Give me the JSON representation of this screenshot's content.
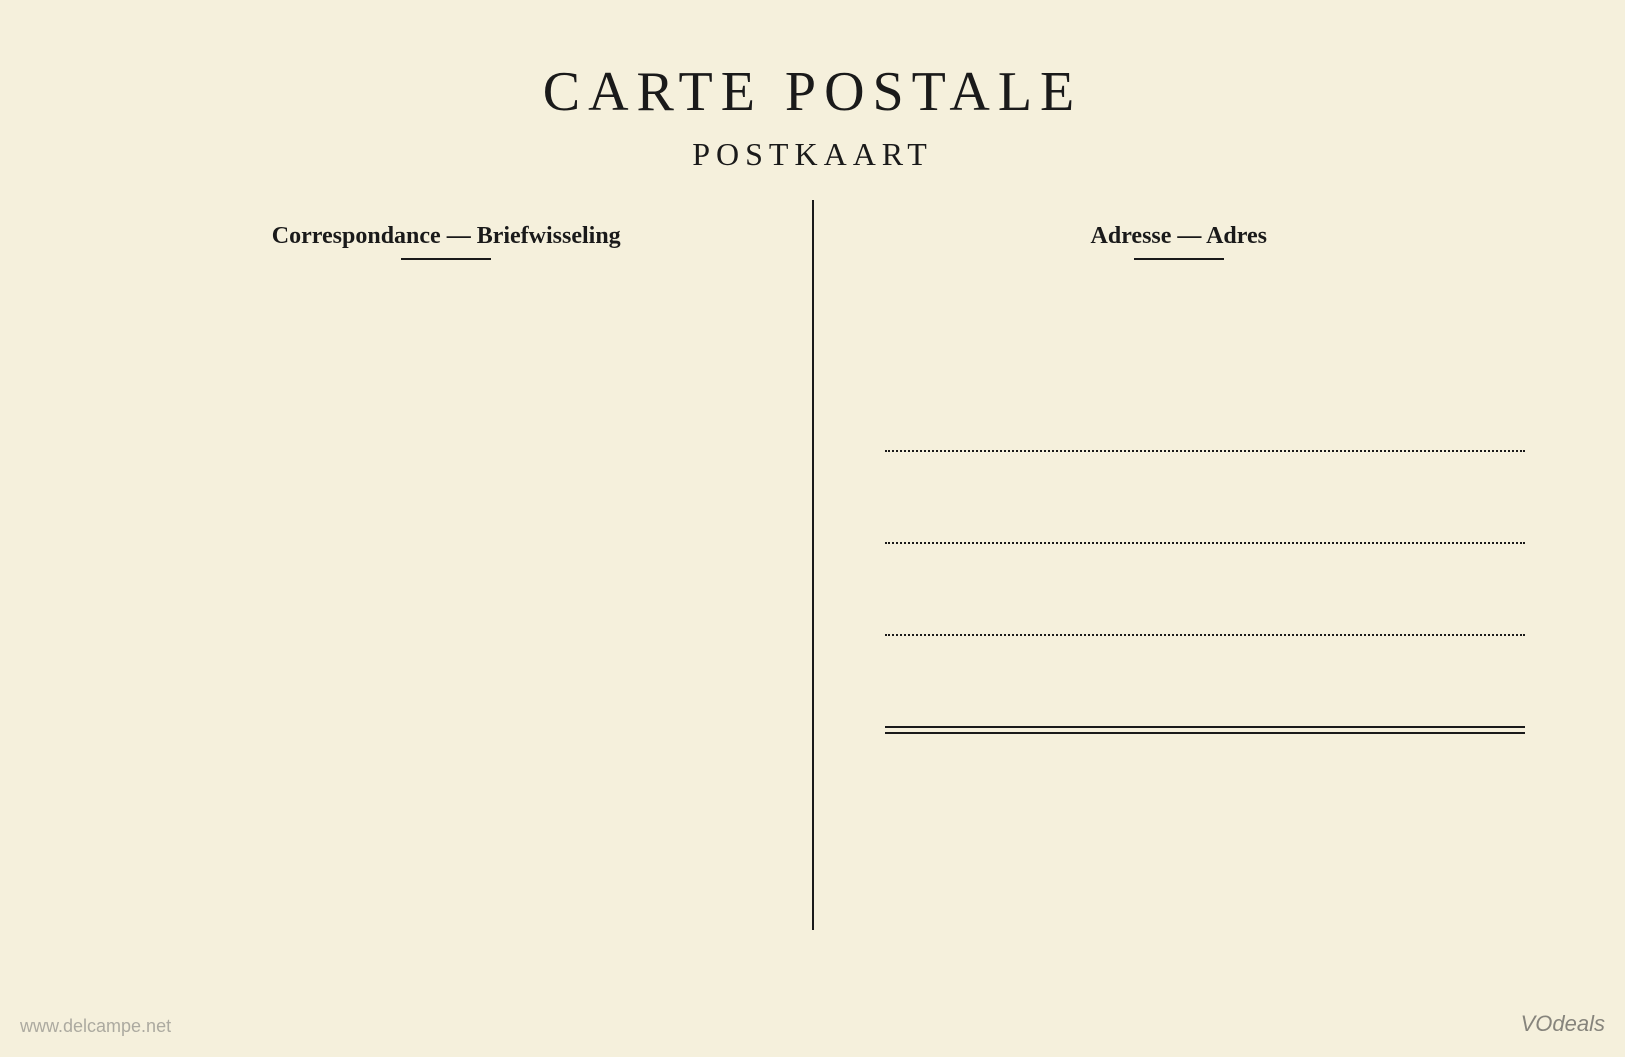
{
  "header": {
    "title_main": "CARTE POSTALE",
    "title_sub": "POSTKAART"
  },
  "labels": {
    "left": "Correspondance — Briefwisseling",
    "right": "Adresse — Adres"
  },
  "address": {
    "line_count": 4,
    "line_styles": [
      "dotted",
      "dotted",
      "dotted",
      "double-solid"
    ]
  },
  "styling": {
    "background_color": "#f5f0dc",
    "text_color": "#1a1a1a",
    "title_main_fontsize": 56,
    "title_main_letterspacing": 8,
    "title_sub_fontsize": 32,
    "title_sub_letterspacing": 6,
    "label_fontsize": 24,
    "label_fontweight": "bold",
    "divider_width": 2,
    "divider_height": 730,
    "underline_width": 90,
    "address_line_spacing": 90,
    "address_area_width": 640
  },
  "watermarks": {
    "left": "www.delcampe.net",
    "right": "VOdeals"
  }
}
